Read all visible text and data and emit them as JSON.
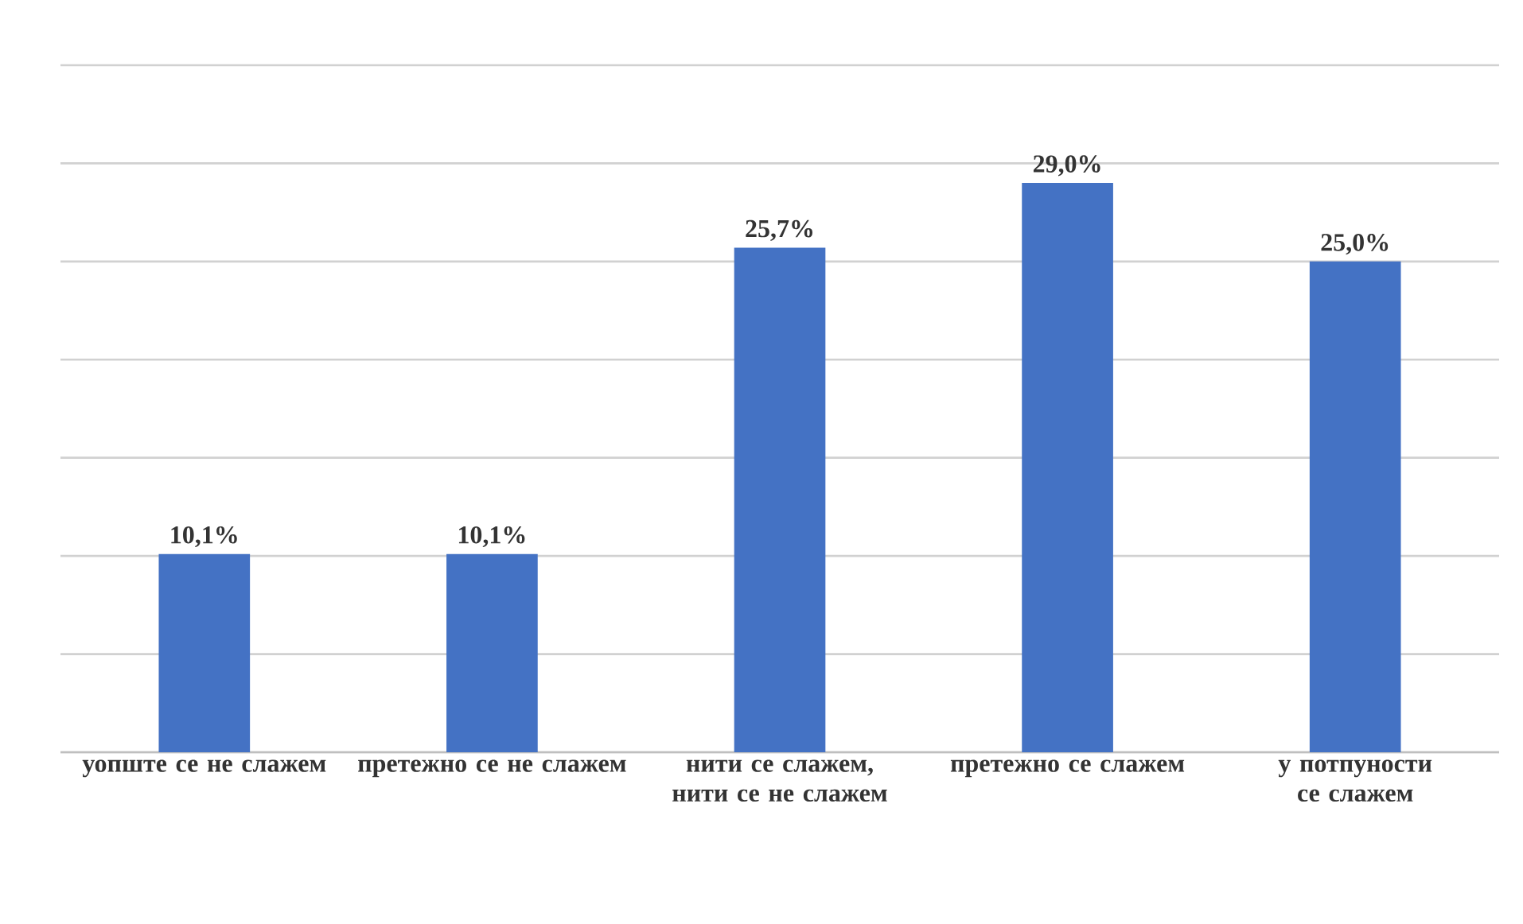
{
  "chart_data": {
    "type": "bar",
    "categories": [
      "уопште се не слажем",
      "претежно се не слажем",
      "нити се слажем, нити се не слажем",
      "претежно се слажем",
      "у потпуности се слажем"
    ],
    "values": [
      10.1,
      10.1,
      25.7,
      29.0,
      25.0
    ],
    "value_labels": [
      "10,1%",
      "10,1%",
      "25,7%",
      "29,0%",
      "25,0%"
    ],
    "color": "#4472c4",
    "ylim": [
      0,
      35
    ],
    "yticks": [
      {
        "value": 0,
        "label": null
      },
      {
        "value": 5,
        "label": null
      },
      {
        "value": 10,
        "label": null
      },
      {
        "value": 15,
        "label": null
      },
      {
        "value": 20,
        "label": null
      },
      {
        "value": 25,
        "label": null
      },
      {
        "value": 30,
        "label": null
      },
      {
        "value": 35,
        "label": null
      }
    ],
    "grid": "y",
    "tick_labels": "x"
  }
}
